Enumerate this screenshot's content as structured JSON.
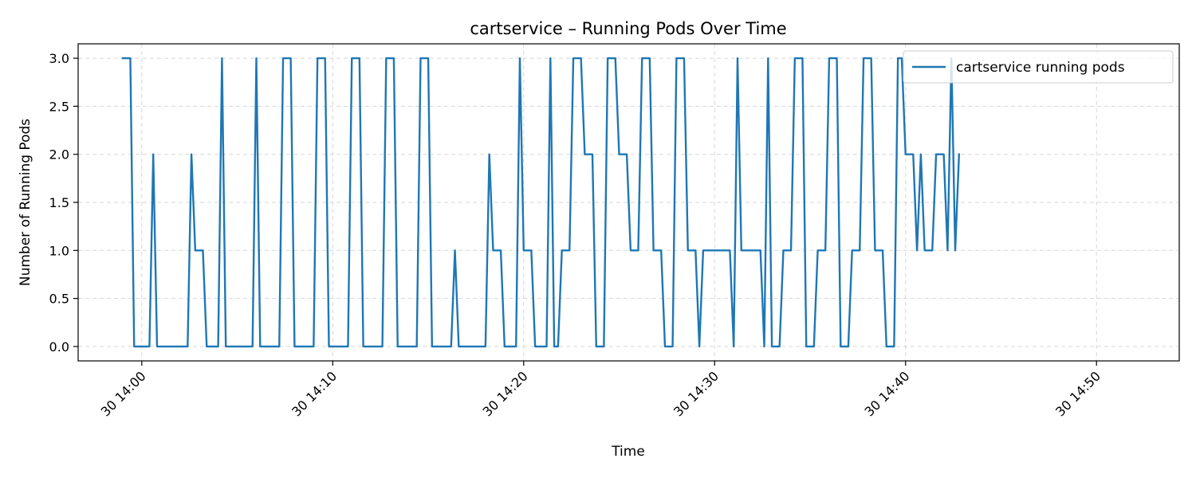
{
  "chart_data": {
    "type": "line",
    "title": "cartservice – Running Pods Over Time",
    "xlabel": "Time",
    "ylabel": "Number of Running Pods",
    "x_start": "2024-xx-30 13:59",
    "x_step_minutes": 0.2,
    "xlim": [
      "30 13:56:40",
      "30 14:54:20"
    ],
    "ylim": [
      -0.15,
      3.15
    ],
    "x_ticks": [
      "30 14:00",
      "30 14:10",
      "30 14:20",
      "30 14:30",
      "30 14:40",
      "30 14:50"
    ],
    "y_ticks": [
      "0.0",
      "0.5",
      "1.0",
      "1.5",
      "2.0",
      "2.5",
      "3.0"
    ],
    "grid": true,
    "legend_position": "top-right",
    "color": "#1f77b4",
    "series": [
      {
        "name": "cartservice running pods",
        "values": [
          3,
          3,
          3,
          0,
          0,
          0,
          0,
          0,
          2,
          0,
          0,
          0,
          0,
          0,
          0,
          0,
          0,
          0,
          2,
          1,
          1,
          1,
          0,
          0,
          0,
          0,
          3,
          0,
          0,
          0,
          0,
          0,
          0,
          0,
          0,
          3,
          0,
          0,
          0,
          0,
          0,
          0,
          3,
          3,
          3,
          0,
          0,
          0,
          0,
          0,
          0,
          3,
          3,
          3,
          0,
          0,
          0,
          0,
          0,
          0,
          3,
          3,
          3,
          0,
          0,
          0,
          0,
          0,
          0,
          3,
          3,
          3,
          0,
          0,
          0,
          0,
          0,
          0,
          3,
          3,
          3,
          0,
          0,
          0,
          0,
          0,
          0,
          1,
          0,
          0,
          0,
          0,
          0,
          0,
          0,
          0,
          2,
          1,
          1,
          1,
          0,
          0,
          0,
          0,
          3,
          1,
          1,
          1,
          0,
          0,
          0,
          0,
          3,
          0,
          0,
          1,
          1,
          1,
          3,
          3,
          3,
          2,
          2,
          2,
          0,
          0,
          0,
          3,
          3,
          3,
          2,
          2,
          2,
          1,
          1,
          1,
          3,
          3,
          3,
          1,
          1,
          1,
          0,
          0,
          0,
          3,
          3,
          3,
          1,
          1,
          1,
          0,
          1,
          1,
          1,
          1,
          1,
          1,
          1,
          1,
          0,
          3,
          1,
          1,
          1,
          1,
          1,
          1,
          0,
          3,
          0,
          0,
          0,
          1,
          1,
          1,
          3,
          3,
          3,
          0,
          0,
          0,
          1,
          1,
          1,
          3,
          3,
          3,
          0,
          0,
          0,
          1,
          1,
          1,
          3,
          3,
          3,
          1,
          1,
          1,
          0,
          0,
          0,
          3,
          3,
          2,
          2,
          2,
          1,
          2,
          1,
          1,
          1,
          2,
          2,
          2,
          1,
          3,
          1,
          2
        ]
      }
    ]
  }
}
